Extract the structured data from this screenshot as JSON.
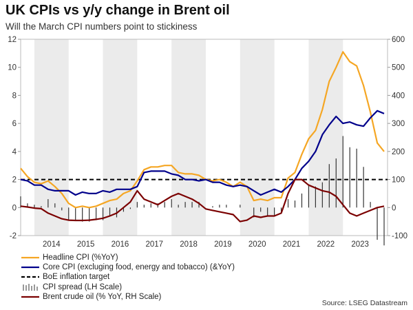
{
  "title": "UK CPIs vs y/y change in Brent oil",
  "subtitle": "Will the March CPI numbers point to stickiness",
  "source": "Source: LSEG Datastream",
  "colors": {
    "headline": "#f5a623",
    "core": "#00008b",
    "boe": "#000000",
    "spread": "#333333",
    "brent": "#7b0000",
    "shade": "#ebebeb"
  },
  "legend": [
    {
      "label": "Headline CPI (%YoY)",
      "style": "solid",
      "color": "#f5a623"
    },
    {
      "label": "Core CPI (excluging food, energy and tobacco) (&YoY)",
      "style": "solid",
      "color": "#00008b"
    },
    {
      "label": "BoE inflation target",
      "style": "dashed",
      "color": "#000000"
    },
    {
      "label": "CPI spread (LH Scale)",
      "style": "bars",
      "color": "#333333"
    },
    {
      "label": "Brent crude oil (% YoY, RH Scale)",
      "style": "solid",
      "color": "#7b0000"
    }
  ],
  "chart_data": {
    "type": "line",
    "x_range": [
      2013.6,
      2024.3
    ],
    "x_ticks": [
      "2014",
      "2015",
      "2016",
      "2017",
      "2018",
      "2019",
      "2020",
      "2021",
      "2022",
      "2023"
    ],
    "ylim_left": [
      -2,
      12
    ],
    "y_ticks_left": [
      "-2",
      "0",
      "2",
      "4",
      "6",
      "8",
      "10",
      "12"
    ],
    "ylim_right": [
      -100,
      600
    ],
    "y_ticks_right": [
      "-100",
      "0",
      "100",
      "200",
      "300",
      "400",
      "500",
      "600"
    ],
    "shaded_years": [
      2014,
      2016,
      2018,
      2020,
      2022
    ],
    "boe_target": 2,
    "grid": false,
    "legend_position": "bottom-left",
    "series": [
      {
        "name": "Headline CPI (%YoY)",
        "axis": "left",
        "x": [
          2013.6,
          2013.8,
          2014.0,
          2014.2,
          2014.4,
          2014.6,
          2014.8,
          2015.0,
          2015.2,
          2015.4,
          2015.6,
          2015.8,
          2016.0,
          2016.2,
          2016.4,
          2016.6,
          2016.8,
          2017.0,
          2017.2,
          2017.4,
          2017.6,
          2017.8,
          2018.0,
          2018.2,
          2018.4,
          2018.6,
          2018.8,
          2019.0,
          2019.2,
          2019.4,
          2019.6,
          2019.8,
          2020.0,
          2020.2,
          2020.4,
          2020.6,
          2020.8,
          2021.0,
          2021.2,
          2021.4,
          2021.6,
          2021.8,
          2022.0,
          2022.2,
          2022.4,
          2022.6,
          2022.8,
          2023.0,
          2023.2,
          2023.4,
          2023.6,
          2023.8,
          2024.0,
          2024.2
        ],
        "values": [
          2.8,
          2.2,
          1.8,
          1.7,
          1.9,
          1.5,
          1.0,
          0.3,
          0.0,
          0.1,
          0.0,
          0.1,
          0.3,
          0.5,
          0.6,
          1.0,
          1.2,
          1.9,
          2.7,
          2.9,
          2.9,
          3.0,
          3.0,
          2.5,
          2.4,
          2.4,
          2.3,
          2.0,
          1.9,
          2.0,
          1.8,
          1.5,
          1.8,
          1.5,
          0.5,
          0.6,
          0.5,
          0.7,
          0.7,
          2.1,
          2.5,
          3.8,
          4.9,
          5.5,
          7.0,
          9.0,
          10.0,
          11.1,
          10.4,
          10.1,
          8.7,
          6.8,
          4.6,
          4.0
        ]
      },
      {
        "name": "Core CPI (excluging food, energy and tobacco) (&YoY)",
        "axis": "left",
        "x": [
          2013.6,
          2013.8,
          2014.0,
          2014.2,
          2014.4,
          2014.6,
          2014.8,
          2015.0,
          2015.2,
          2015.4,
          2015.6,
          2015.8,
          2016.0,
          2016.2,
          2016.4,
          2016.6,
          2016.8,
          2017.0,
          2017.2,
          2017.4,
          2017.6,
          2017.8,
          2018.0,
          2018.2,
          2018.4,
          2018.6,
          2018.8,
          2019.0,
          2019.2,
          2019.4,
          2019.6,
          2019.8,
          2020.0,
          2020.2,
          2020.4,
          2020.6,
          2020.8,
          2021.0,
          2021.2,
          2021.4,
          2021.6,
          2021.8,
          2022.0,
          2022.2,
          2022.4,
          2022.6,
          2022.8,
          2023.0,
          2023.2,
          2023.4,
          2023.6,
          2023.8,
          2024.0,
          2024.2
        ],
        "values": [
          2.0,
          1.9,
          1.6,
          1.6,
          1.3,
          1.2,
          1.2,
          1.2,
          0.9,
          1.1,
          1.0,
          1.0,
          1.2,
          1.1,
          1.3,
          1.3,
          1.3,
          1.5,
          2.5,
          2.6,
          2.6,
          2.6,
          2.4,
          2.3,
          2.0,
          2.0,
          1.9,
          2.0,
          1.8,
          1.8,
          1.6,
          1.5,
          1.6,
          1.5,
          1.2,
          0.9,
          1.1,
          1.3,
          1.1,
          1.5,
          2.0,
          2.8,
          3.3,
          4.0,
          5.2,
          5.9,
          6.5,
          6.0,
          6.1,
          5.9,
          5.8,
          6.4,
          6.9,
          6.7
        ]
      },
      {
        "name": "Brent crude oil (% YoY, RH Scale)",
        "axis": "right",
        "x": [
          2013.6,
          2013.8,
          2014.0,
          2014.2,
          2014.4,
          2014.6,
          2014.8,
          2015.0,
          2015.2,
          2015.4,
          2015.6,
          2015.8,
          2016.0,
          2016.2,
          2016.4,
          2016.6,
          2016.8,
          2017.0,
          2017.2,
          2017.4,
          2017.6,
          2017.8,
          2018.0,
          2018.2,
          2018.4,
          2018.6,
          2018.8,
          2019.0,
          2019.2,
          2019.4,
          2019.6,
          2019.8,
          2020.0,
          2020.2,
          2020.4,
          2020.6,
          2020.8,
          2021.0,
          2021.2,
          2021.4,
          2021.6,
          2021.8,
          2022.0,
          2022.2,
          2022.4,
          2022.6,
          2022.8,
          2023.0,
          2023.2,
          2023.4,
          2023.6,
          2023.8,
          2024.0,
          2024.2
        ],
        "values": [
          5,
          2,
          -2,
          -4,
          -20,
          -30,
          -40,
          -45,
          -46,
          -46,
          -45,
          -42,
          -38,
          -30,
          -20,
          0,
          20,
          60,
          30,
          20,
          10,
          25,
          40,
          50,
          40,
          30,
          15,
          -5,
          -10,
          -15,
          -20,
          -25,
          -50,
          -45,
          -30,
          -35,
          -30,
          -30,
          -20,
          50,
          100,
          100,
          80,
          70,
          60,
          55,
          40,
          10,
          -20,
          -30,
          -20,
          -10,
          0,
          5
        ]
      }
    ],
    "spread": {
      "name": "CPI spread (LH Scale)",
      "axis": "left",
      "x": [
        2013.6,
        2013.8,
        2014.0,
        2014.2,
        2014.4,
        2014.6,
        2014.8,
        2015.0,
        2015.2,
        2015.4,
        2015.6,
        2015.8,
        2016.0,
        2016.2,
        2016.4,
        2016.6,
        2016.8,
        2017.0,
        2017.2,
        2017.4,
        2017.6,
        2017.8,
        2018.0,
        2018.2,
        2018.4,
        2018.6,
        2018.8,
        2019.0,
        2019.2,
        2019.4,
        2019.6,
        2019.8,
        2020.0,
        2020.2,
        2020.4,
        2020.6,
        2020.8,
        2021.0,
        2021.2,
        2021.4,
        2021.6,
        2021.8,
        2022.0,
        2022.2,
        2022.4,
        2022.6,
        2022.8,
        2023.0,
        2023.2,
        2023.4,
        2023.6,
        2023.8,
        2024.0,
        2024.2
      ],
      "values": [
        0.8,
        0.3,
        0.2,
        0.1,
        0.6,
        0.3,
        -0.2,
        -0.9,
        -0.9,
        -1.0,
        -1.0,
        -0.9,
        -0.9,
        -0.6,
        -0.7,
        -0.3,
        -0.1,
        0.4,
        0.2,
        0.3,
        0.3,
        0.4,
        0.6,
        0.2,
        0.4,
        0.4,
        0.4,
        0.0,
        0.1,
        0.2,
        0.2,
        0.0,
        0.2,
        0.0,
        -0.7,
        -0.3,
        -0.6,
        -0.6,
        -0.4,
        0.6,
        0.5,
        1.0,
        1.6,
        1.5,
        1.8,
        3.1,
        3.5,
        5.1,
        4.3,
        4.2,
        2.9,
        0.4,
        -2.3,
        -2.7
      ]
    }
  }
}
